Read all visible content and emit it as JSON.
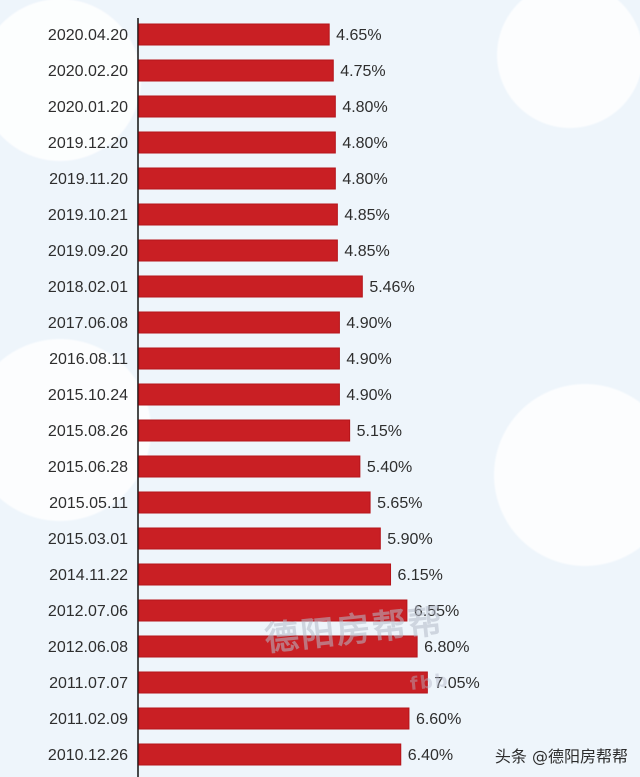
{
  "chart_data": {
    "type": "bar",
    "title": "",
    "xlabel": "",
    "ylabel": "",
    "orientation": "horizontal",
    "categories": [
      "2020.04.20",
      "2020.02.20",
      "2020.01.20",
      "2019.12.20",
      "2019.11.20",
      "2019.10.21",
      "2019.09.20",
      "2018.02.01",
      "2017.06.08",
      "2016.08.11",
      "2015.10.24",
      "2015.08.26",
      "2015.06.28",
      "2015.05.11",
      "2015.03.01",
      "2014.11.22",
      "2012.07.06",
      "2012.06.08",
      "2011.07.07",
      "2011.02.09",
      "2010.12.26"
    ],
    "values": [
      4.65,
      4.75,
      4.8,
      4.8,
      4.8,
      4.85,
      4.85,
      5.46,
      4.9,
      4.9,
      4.9,
      5.15,
      5.4,
      5.65,
      5.9,
      6.15,
      6.55,
      6.8,
      7.05,
      6.6,
      6.4
    ],
    "value_labels": [
      "4.65%",
      "4.75%",
      "4.80%",
      "4.80%",
      "4.80%",
      "4.85%",
      "4.85%",
      "5.46%",
      "4.90%",
      "4.90%",
      "4.90%",
      "5.15%",
      "5.40%",
      "5.65%",
      "5.90%",
      "6.15%",
      "6.55%",
      "6.80%",
      "7.05%",
      "6.60%",
      "6.40%"
    ],
    "grid": false,
    "legend": "none",
    "colors": {
      "bar": "#c91f24",
      "axis": "#111111",
      "text": "#2e2e2e"
    }
  },
  "overlay": {
    "watermark": "德阳房帮帮",
    "watermark_sub": "fbb",
    "credit": "头条 @德阳房帮帮"
  }
}
